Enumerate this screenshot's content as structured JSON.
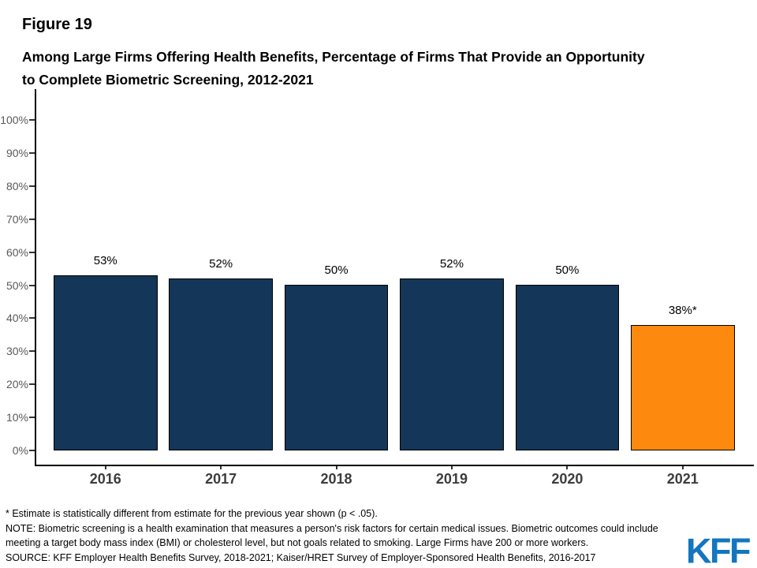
{
  "figure_label": "Figure 19",
  "title": "Among Large Firms Offering Health Benefits, Percentage of Firms That Provide an Opportunity to Complete Biometric Screening, 2012-2021",
  "chart_data": {
    "type": "bar",
    "title": "Among Large Firms Offering Health Benefits, Percentage of Firms That Provide an Opportunity to Complete Biometric Screening, 2012-2021",
    "categories": [
      "2016",
      "2017",
      "2018",
      "2019",
      "2020",
      "2021"
    ],
    "values": [
      53,
      52,
      50,
      52,
      50,
      38
    ],
    "bar_labels": [
      "53%",
      "52%",
      "50%",
      "52%",
      "50%",
      "38%*"
    ],
    "bar_colors": [
      "#143658",
      "#143658",
      "#143658",
      "#143658",
      "#143658",
      "#fd8a0e"
    ],
    "xlabel": "",
    "ylabel": "",
    "ylim": [
      0,
      100
    ],
    "yticks": [
      0,
      10,
      20,
      30,
      40,
      50,
      60,
      70,
      80,
      90,
      100
    ],
    "ytick_labels": [
      "0%",
      "10%",
      "20%",
      "30%",
      "40%",
      "50%",
      "60%",
      "70%",
      "80%",
      "90%",
      "100%"
    ],
    "grid": false,
    "legend": false
  },
  "footer": {
    "footnote": "* Estimate is statistically different from estimate for the previous year shown (p < .05).",
    "note": "NOTE: Biometric screening is a health examination that measures a person's risk factors for certain medical issues. Biometric outcomes could include meeting a target body mass index (BMI) or cholesterol level, but not goals related to smoking. Large Firms have 200 or more workers.",
    "source": "SOURCE: KFF Employer Health Benefits Survey, 2018-2021; Kaiser/HRET Survey of Employer-Sponsored Health Benefits, 2016-2017"
  },
  "logo": {
    "text": "KFF",
    "color": "#1376c0"
  },
  "colors": {
    "background": "#ffffff",
    "bar_primary": "#143658",
    "bar_highlight": "#fd8a0e",
    "axis": "#000000",
    "ytick_label": "#595959",
    "year_label": "#3d3d3d",
    "data_label": "#000000"
  }
}
